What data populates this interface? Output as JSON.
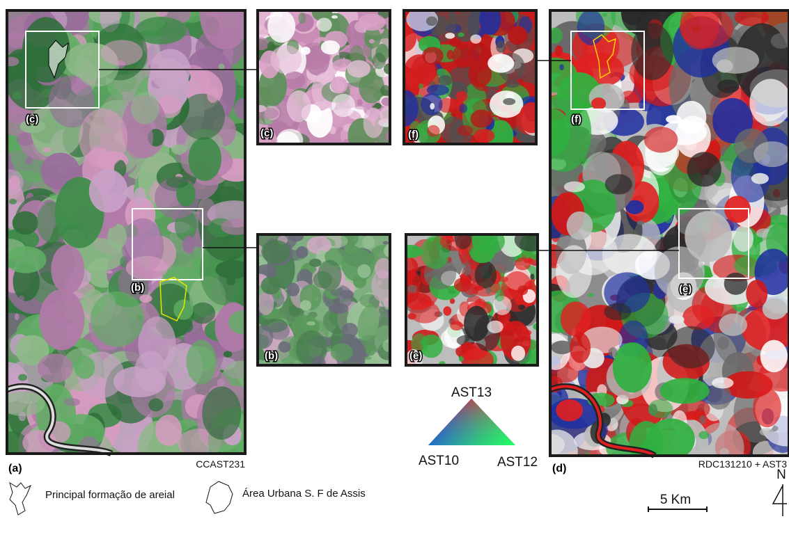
{
  "panels": [
    {
      "label": "(a)",
      "caption": "CCAST231",
      "box_labels": [
        "(c)",
        "(b)"
      ]
    },
    {
      "label": "(c)"
    },
    {
      "label": "(b)"
    },
    {
      "label": "(f)"
    },
    {
      "label": "(e)"
    },
    {
      "label": "(d)",
      "caption": "RDC131210 + AST3",
      "box_labels": [
        "(f)",
        "(e)"
      ]
    }
  ],
  "color_triangle": {
    "top": "AST13",
    "left": "AST10",
    "right": "AST12"
  },
  "legend": [
    {
      "label": "Principal formação de areial"
    },
    {
      "label": "Área Urbana S. F de Assis"
    }
  ],
  "scale_bar": "5 Km",
  "north": "N"
}
